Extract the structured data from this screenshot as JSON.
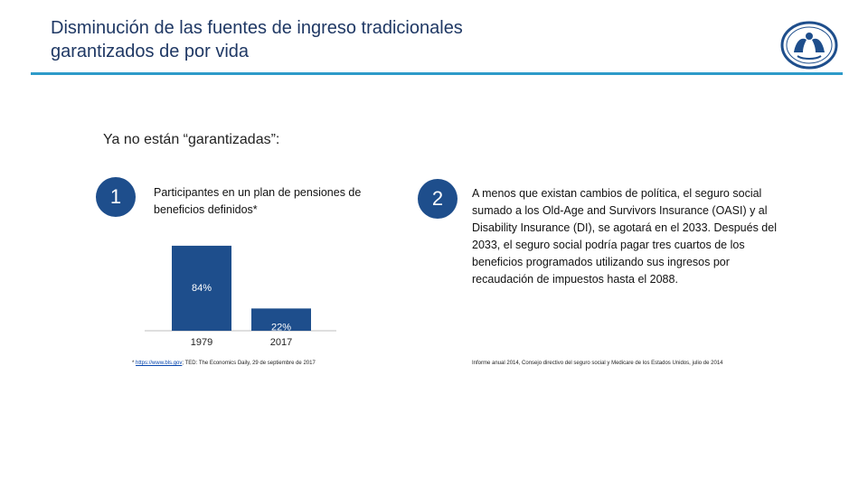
{
  "header": {
    "title_line1": "Disminución de las fuentes de ingreso tradicionales",
    "title_line2": "garantizados de por vida",
    "logo_icon": "hands-logo-icon",
    "brand_color": "#1e4e8c",
    "rule_color": "#2e9bc9"
  },
  "subtitle": "Ya no están “garantizadas”:",
  "items": [
    {
      "number": "1",
      "text": "Participantes en un plan de pensiones de beneficios definidos*"
    },
    {
      "number": "2",
      "text": "A menos que existan cambios de política, el seguro social sumado a los Old-Age and Survivors Insurance (OASI) y al Disability Insurance (DI), se agotará en el 2033. Después del 2033, el seguro social podría pagar tres cuartos de los beneficios programados utilizando sus ingresos por recaudación de impuestos hasta el 2088."
    }
  ],
  "chart_data": {
    "type": "bar",
    "categories": [
      "1979",
      "2017"
    ],
    "values": [
      84,
      22
    ],
    "data_labels": [
      "84%",
      "22%"
    ],
    "bar_color": "#1e4e8c",
    "ylim": [
      0,
      100
    ],
    "grid": false
  },
  "sources": {
    "left_prefix": "* ",
    "left_link": "https://www.bls.gov",
    "left_rest": "; TED: The Economics Daily, 29 de septiembre de 2017",
    "right": "Informe anual 2014, Consejo directivo del seguro social y Medicare de los Estados Unidos, julio de 2014"
  }
}
